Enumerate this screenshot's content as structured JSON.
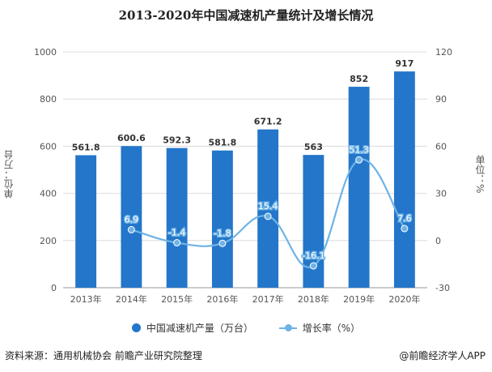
{
  "chart_data": {
    "type": "bar",
    "title": "2013-2020年中国减速机产量统计及增长情况",
    "categories": [
      "2013年",
      "2014年",
      "2015年",
      "2016年",
      "2017年",
      "2018年",
      "2019年",
      "2020年"
    ],
    "series": [
      {
        "name": "中国减速机产量（万台）",
        "type": "bar",
        "axis": "left",
        "values": [
          561.8,
          600.6,
          592.3,
          581.8,
          671.2,
          563,
          852,
          917
        ],
        "labels": [
          "561.8",
          "600.6",
          "592.3",
          "581.8",
          "671.2",
          "563",
          "852",
          "917"
        ],
        "color": "#2376c9"
      },
      {
        "name": "增长率（%）",
        "type": "line",
        "axis": "right",
        "values": [
          null,
          6.9,
          -1.4,
          -1.8,
          15.4,
          -16.1,
          51.3,
          7.6
        ],
        "labels": [
          "",
          "6.9",
          "-1.4",
          "-1.8",
          "15.4",
          "-16.1",
          "51.3",
          "7.6"
        ],
        "color": "#6fb3e6"
      }
    ],
    "y_left": {
      "label": "单位：万台",
      "range": [
        0,
        1000
      ],
      "ticks": [
        "0",
        "200",
        "400",
        "600",
        "800",
        "1000"
      ]
    },
    "y_right": {
      "label": "单位：%",
      "range": [
        -30,
        120
      ],
      "ticks": [
        "-30",
        "0",
        "30",
        "60",
        "90",
        "120"
      ]
    },
    "grid": true,
    "legend_position": "bottom-center"
  },
  "legend": {
    "bar_label": "中国减速机产量（万台）",
    "line_label": "增长率（%）"
  },
  "footer": {
    "source": "资料来源：通用机械协会 前瞻产业研究院整理",
    "credit": "@前瞻经济学人APP"
  },
  "colors": {
    "bar": "#2376c9",
    "line": "#6fb3e6",
    "grid": "#dcdcdc",
    "axis_text": "#555555"
  }
}
